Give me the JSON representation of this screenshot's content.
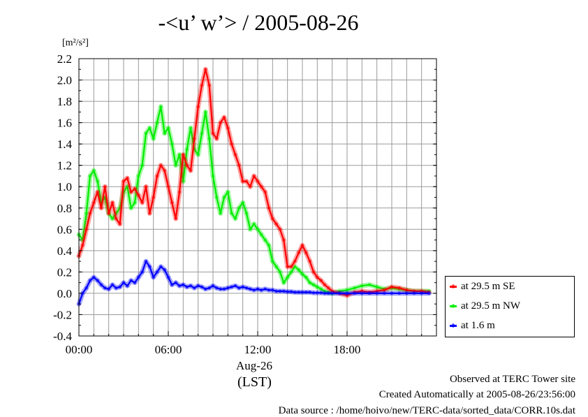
{
  "title": "-<u’ w’> / 2005-08-26",
  "unit_label": "[m²/s²]",
  "x_date_label": "Aug-26",
  "x_zone_label": "(LST)",
  "footer": {
    "line1": "Observed at TERC Tower site",
    "line2": "Created Automatically at 2005-08-26/23:56:00",
    "line3": "Data source : /home/hoivo/new/TERC-data/sorted_data/CORR.10s.dat"
  },
  "colors": {
    "red": "#ff0000",
    "green": "#00ee00",
    "blue": "#0000ff"
  },
  "chart_data": {
    "type": "line",
    "title": "-<u’ w’> / 2005-08-26",
    "ylabel": "[m²/s²]",
    "xlabel": "(LST)",
    "xlim": [
      0,
      24
    ],
    "ylim": [
      -0.4,
      2.2
    ],
    "grid": true,
    "legend_position": "right",
    "x_tick_labels": [
      "00:00",
      "06:00",
      "12:00",
      "18:00"
    ],
    "x_ticks": [
      0,
      6,
      12,
      18
    ],
    "y_ticks": [
      -0.4,
      -0.2,
      0.0,
      0.2,
      0.4,
      0.6,
      0.8,
      1.0,
      1.2,
      1.4,
      1.6,
      1.8,
      2.0,
      2.2
    ],
    "y_tick_labels": [
      "-0.4",
      "-0.2",
      "0.0",
      "0.2",
      "0.4",
      "0.6",
      "0.8",
      "1.0",
      "1.2",
      "1.4",
      "1.6",
      "1.8",
      "2.0",
      "2.2"
    ],
    "x": [
      0.0,
      0.25,
      0.5,
      0.75,
      1.0,
      1.25,
      1.5,
      1.75,
      2.0,
      2.25,
      2.5,
      2.75,
      3.0,
      3.25,
      3.5,
      3.75,
      4.0,
      4.25,
      4.5,
      4.75,
      5.0,
      5.25,
      5.5,
      5.75,
      6.0,
      6.25,
      6.5,
      6.75,
      7.0,
      7.25,
      7.5,
      7.75,
      8.0,
      8.25,
      8.5,
      8.75,
      9.0,
      9.25,
      9.5,
      9.75,
      10.0,
      10.25,
      10.5,
      10.75,
      11.0,
      11.25,
      11.5,
      11.75,
      12.0,
      12.25,
      12.5,
      12.75,
      13.0,
      13.25,
      13.5,
      13.75,
      14.0,
      14.25,
      14.5,
      14.75,
      15.0,
      15.25,
      15.5,
      15.75,
      16.0,
      16.25,
      16.5,
      16.75,
      17.0,
      17.5,
      18.0,
      18.5,
      19.0,
      19.5,
      20.0,
      20.5,
      21.0,
      21.5,
      22.0,
      22.5,
      23.0,
      23.5
    ],
    "series": [
      {
        "name": "at 29.5 m SE",
        "color": "#ff0000",
        "values": [
          0.35,
          0.45,
          0.6,
          0.75,
          0.85,
          0.95,
          0.8,
          1.0,
          0.75,
          0.85,
          0.7,
          0.65,
          1.05,
          1.08,
          0.95,
          0.98,
          0.92,
          0.85,
          1.0,
          0.75,
          0.9,
          1.1,
          1.2,
          1.15,
          1.0,
          0.85,
          0.7,
          0.95,
          1.3,
          1.2,
          1.15,
          1.45,
          1.75,
          1.95,
          2.1,
          1.95,
          1.5,
          1.45,
          1.6,
          1.65,
          1.55,
          1.4,
          1.3,
          1.2,
          1.05,
          1.05,
          1.0,
          1.1,
          1.05,
          1.0,
          0.95,
          0.8,
          0.7,
          0.65,
          0.6,
          0.5,
          0.25,
          0.25,
          0.3,
          0.38,
          0.45,
          0.38,
          0.3,
          0.2,
          0.15,
          0.12,
          0.08,
          0.05,
          0.02,
          0.0,
          -0.02,
          0.01,
          0.02,
          0.01,
          0.02,
          0.03,
          0.06,
          0.05,
          0.03,
          0.02,
          0.02,
          0.01
        ]
      },
      {
        "name": "at 29.5 m NW",
        "color": "#00ee00",
        "values": [
          0.55,
          0.5,
          0.75,
          1.1,
          1.15,
          1.05,
          0.85,
          0.9,
          0.75,
          0.7,
          0.75,
          0.8,
          0.95,
          1.0,
          0.8,
          0.85,
          1.1,
          1.2,
          1.5,
          1.55,
          1.45,
          1.6,
          1.75,
          1.5,
          1.55,
          1.4,
          1.2,
          1.3,
          1.05,
          1.35,
          1.55,
          1.35,
          1.3,
          1.5,
          1.7,
          1.45,
          1.1,
          0.9,
          0.75,
          0.9,
          0.95,
          0.75,
          0.7,
          0.8,
          0.85,
          0.75,
          0.6,
          0.65,
          0.6,
          0.55,
          0.5,
          0.45,
          0.3,
          0.25,
          0.2,
          0.1,
          0.15,
          0.2,
          0.25,
          0.22,
          0.18,
          0.15,
          0.1,
          0.08,
          0.06,
          0.04,
          0.02,
          0.01,
          0.0,
          0.02,
          0.03,
          0.05,
          0.07,
          0.08,
          0.06,
          0.04,
          0.05,
          0.04,
          0.03,
          0.02,
          0.02,
          0.02
        ]
      },
      {
        "name": "at 1.6 m",
        "color": "#0000ff",
        "values": [
          -0.1,
          0.0,
          0.05,
          0.12,
          0.15,
          0.12,
          0.08,
          0.05,
          0.04,
          0.08,
          0.05,
          0.06,
          0.1,
          0.07,
          0.12,
          0.1,
          0.15,
          0.2,
          0.3,
          0.25,
          0.15,
          0.2,
          0.25,
          0.22,
          0.15,
          0.08,
          0.1,
          0.07,
          0.08,
          0.06,
          0.07,
          0.05,
          0.07,
          0.06,
          0.04,
          0.05,
          0.07,
          0.05,
          0.04,
          0.04,
          0.05,
          0.06,
          0.07,
          0.05,
          0.06,
          0.05,
          0.04,
          0.03,
          0.04,
          0.03,
          0.04,
          0.03,
          0.03,
          0.02,
          0.02,
          0.02,
          0.015,
          0.015,
          0.01,
          0.01,
          0.01,
          0.01,
          0.01,
          0.005,
          0.005,
          0.005,
          0.0,
          0.0,
          0.0,
          0.0,
          0.0,
          0.0,
          0.0,
          0.0,
          0.0,
          0.0,
          0.0,
          0.0,
          0.0,
          0.0,
          0.0,
          0.0
        ]
      }
    ]
  }
}
